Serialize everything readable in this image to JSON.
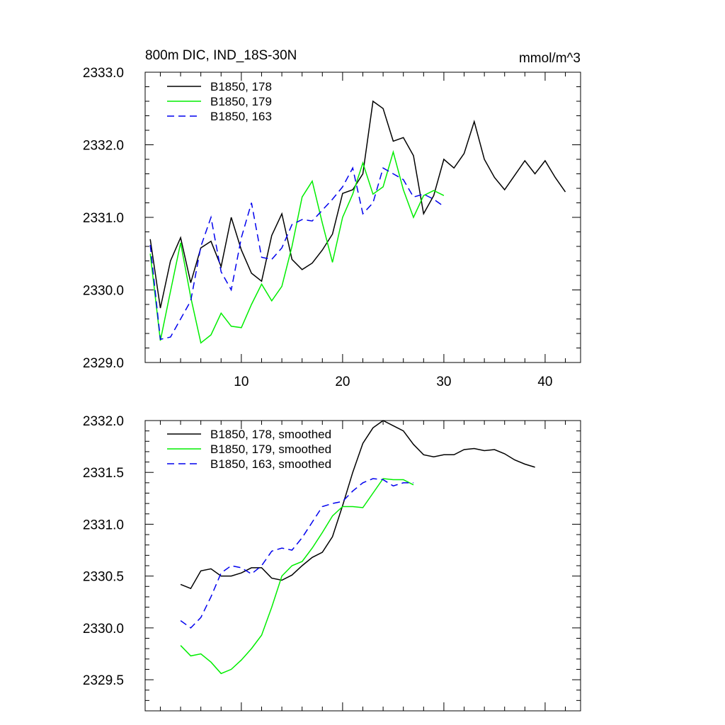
{
  "chart_data": [
    {
      "type": "line",
      "title": "800m DIC, IND_18S-30N",
      "units": "mmol/m^3",
      "xlim": [
        0.5,
        43.5
      ],
      "ylim": [
        2329.0,
        2333.0
      ],
      "xticks": [
        10,
        20,
        30,
        40
      ],
      "xtick_labels": [
        "10",
        "20",
        "30",
        "40"
      ],
      "yticks": [
        2329.0,
        2330.0,
        2331.0,
        2332.0,
        2333.0
      ],
      "ytick_labels": [
        "2329.0",
        "2330.0",
        "2331.0",
        "2332.0",
        "2333.0"
      ],
      "legend_position": "top-left",
      "series": [
        {
          "name": "B1850, 178",
          "color": "#000000",
          "dash": "solid",
          "x": [
            1,
            2,
            3,
            4,
            5,
            6,
            7,
            8,
            9,
            10,
            11,
            12,
            13,
            14,
            15,
            16,
            17,
            18,
            19,
            20,
            21,
            22,
            23,
            24,
            25,
            26,
            27,
            28,
            29,
            30,
            31,
            32,
            33,
            34,
            35,
            36,
            37,
            38,
            39,
            40,
            41,
            42
          ],
          "values": [
            2330.7,
            2329.75,
            2330.4,
            2330.72,
            2330.1,
            2330.58,
            2330.67,
            2330.32,
            2331.0,
            2330.55,
            2330.23,
            2330.12,
            2330.75,
            2331.05,
            2330.42,
            2330.28,
            2330.37,
            2330.55,
            2330.77,
            2331.33,
            2331.38,
            2331.6,
            2332.6,
            2332.5,
            2332.05,
            2332.1,
            2331.85,
            2331.05,
            2331.3,
            2331.8,
            2331.68,
            2331.88,
            2332.32,
            2331.8,
            2331.55,
            2331.38,
            2331.58,
            2331.78,
            2331.6,
            2331.78,
            2331.55,
            2331.35
          ]
        },
        {
          "name": "B1850, 179",
          "color": "#00ee00",
          "dash": "solid",
          "x": [
            1,
            2,
            3,
            4,
            5,
            6,
            7,
            8,
            9,
            10,
            11,
            12,
            13,
            14,
            15,
            16,
            17,
            18,
            19,
            20,
            21,
            22,
            23,
            24,
            25,
            26,
            27,
            28,
            29,
            30
          ],
          "values": [
            2330.5,
            2329.3,
            2329.98,
            2330.65,
            2329.9,
            2329.27,
            2329.38,
            2329.68,
            2329.5,
            2329.48,
            2329.8,
            2330.08,
            2329.85,
            2330.05,
            2330.6,
            2331.28,
            2331.5,
            2330.92,
            2330.38,
            2331.0,
            2331.32,
            2331.75,
            2331.32,
            2331.42,
            2331.9,
            2331.38,
            2331.0,
            2331.3,
            2331.37,
            2331.3
          ]
        },
        {
          "name": "B1850, 163",
          "color": "#0000ee",
          "dash": "dashed",
          "x": [
            1,
            2,
            3,
            4,
            5,
            6,
            7,
            8,
            9,
            10,
            11,
            12,
            13,
            14,
            15,
            16,
            17,
            18,
            19,
            20,
            21,
            22,
            23,
            24,
            25,
            26,
            27,
            28,
            29,
            30
          ],
          "values": [
            2330.62,
            2329.32,
            2329.35,
            2329.6,
            2329.85,
            2330.6,
            2331.0,
            2330.25,
            2330.0,
            2330.72,
            2331.2,
            2330.45,
            2330.42,
            2330.58,
            2330.9,
            2330.97,
            2330.95,
            2331.1,
            2331.25,
            2331.42,
            2331.68,
            2331.05,
            2331.2,
            2331.68,
            2331.6,
            2331.52,
            2331.28,
            2331.32,
            2331.25,
            2331.15
          ]
        }
      ]
    },
    {
      "type": "line",
      "xlim": [
        0.5,
        43.5
      ],
      "ylim": [
        2329.2,
        2332.0
      ],
      "xticks": [
        10,
        20,
        30,
        40
      ],
      "yticks": [
        2329.5,
        2330.0,
        2330.5,
        2331.0,
        2331.5,
        2332.0
      ],
      "ytick_labels": [
        "2329.5",
        "2330.0",
        "2330.5",
        "2331.0",
        "2331.5",
        "2332.0"
      ],
      "legend_position": "top-left",
      "series": [
        {
          "name": "B1850, 178, smoothed",
          "color": "#000000",
          "dash": "solid",
          "x": [
            4,
            5,
            6,
            7,
            8,
            9,
            10,
            11,
            12,
            13,
            14,
            15,
            16,
            17,
            18,
            19,
            20,
            21,
            22,
            23,
            24,
            25,
            26,
            27,
            28,
            29,
            30,
            31,
            32,
            33,
            34,
            35,
            36,
            37,
            38,
            39
          ],
          "values": [
            2330.42,
            2330.38,
            2330.55,
            2330.57,
            2330.5,
            2330.5,
            2330.53,
            2330.58,
            2330.58,
            2330.48,
            2330.46,
            2330.51,
            2330.6,
            2330.68,
            2330.73,
            2330.88,
            2331.18,
            2331.5,
            2331.78,
            2331.93,
            2332.0,
            2331.95,
            2331.9,
            2331.77,
            2331.67,
            2331.65,
            2331.67,
            2331.67,
            2331.72,
            2331.73,
            2331.71,
            2331.72,
            2331.68,
            2331.62,
            2331.58,
            2331.55
          ]
        },
        {
          "name": "B1850, 179, smoothed",
          "color": "#00ee00",
          "dash": "solid",
          "x": [
            4,
            5,
            6,
            7,
            8,
            9,
            10,
            11,
            12,
            13,
            14,
            15,
            16,
            17,
            18,
            19,
            20,
            21,
            22,
            23,
            24,
            25,
            26,
            27
          ],
          "values": [
            2329.83,
            2329.73,
            2329.75,
            2329.67,
            2329.56,
            2329.6,
            2329.69,
            2329.8,
            2329.93,
            2330.2,
            2330.5,
            2330.6,
            2330.64,
            2330.77,
            2330.92,
            2331.08,
            2331.17,
            2331.17,
            2331.16,
            2331.3,
            2331.44,
            2331.43,
            2331.43,
            2331.38
          ]
        },
        {
          "name": "B1850, 163, smoothed",
          "color": "#0000ee",
          "dash": "dashed",
          "x": [
            4,
            5,
            6,
            7,
            8,
            9,
            10,
            11,
            12,
            13,
            14,
            15,
            16,
            17,
            18,
            19,
            20,
            21,
            22,
            23,
            24,
            25,
            26,
            27
          ],
          "values": [
            2330.07,
            2330.0,
            2330.1,
            2330.3,
            2330.53,
            2330.6,
            2330.58,
            2330.52,
            2330.6,
            2330.74,
            2330.77,
            2330.75,
            2330.87,
            2331.02,
            2331.17,
            2331.2,
            2331.22,
            2331.32,
            2331.4,
            2331.44,
            2331.43,
            2331.37,
            2331.4,
            2331.4
          ]
        }
      ]
    }
  ]
}
